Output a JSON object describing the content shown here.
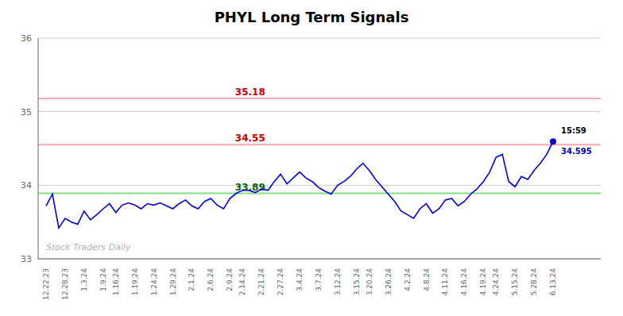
{
  "chart_data": {
    "type": "line",
    "title": "PHYL Long Term Signals",
    "categories": [
      "12.22.23",
      null,
      null,
      "12.28.23",
      null,
      null,
      "1.3.24",
      null,
      null,
      "1.9.24",
      null,
      "1.16.24",
      null,
      null,
      "1.19.24",
      null,
      null,
      "1.24.24",
      null,
      null,
      "1.29.24",
      null,
      null,
      "2.1.24",
      null,
      null,
      "2.6.24",
      null,
      null,
      "2.9.24",
      null,
      "2.14.24",
      null,
      null,
      "2.21.24",
      null,
      null,
      "2.27.24",
      null,
      null,
      "3.4.24",
      null,
      null,
      "3.7.24",
      null,
      null,
      "3.12.24",
      null,
      null,
      "3.15.24",
      null,
      "3.20.24",
      null,
      null,
      "3.26.24",
      null,
      null,
      "4.2.24",
      null,
      null,
      "4.8.24",
      null,
      null,
      "4.11.24",
      null,
      null,
      "4.16.24",
      null,
      null,
      "4.19.24",
      null,
      "4.24.24",
      null,
      null,
      "5.15.24",
      null,
      null,
      "5.28.24",
      null,
      null,
      "6.13.24"
    ],
    "values": [
      33.72,
      33.88,
      33.42,
      33.55,
      33.5,
      33.47,
      33.65,
      33.53,
      33.6,
      33.68,
      33.75,
      33.63,
      33.73,
      33.76,
      33.73,
      33.68,
      33.75,
      33.73,
      33.76,
      33.72,
      33.68,
      33.75,
      33.8,
      33.72,
      33.68,
      33.78,
      33.82,
      33.73,
      33.68,
      33.82,
      33.89,
      33.93,
      33.93,
      33.9,
      33.95,
      33.93,
      34.05,
      34.15,
      34.02,
      34.1,
      34.18,
      34.1,
      34.05,
      33.97,
      33.92,
      33.88,
      34.0,
      34.05,
      34.12,
      34.22,
      34.3,
      34.2,
      34.08,
      33.98,
      33.88,
      33.78,
      33.65,
      33.6,
      33.55,
      33.68,
      33.75,
      33.62,
      33.68,
      33.8,
      33.82,
      33.72,
      33.78,
      33.88,
      33.95,
      34.05,
      34.18,
      34.38,
      34.42,
      34.05,
      33.98,
      34.12,
      34.08,
      34.2,
      34.3,
      34.42,
      34.595
    ],
    "color": "#0000dd",
    "ylim": [
      33,
      36
    ],
    "yticks": [
      33,
      34,
      35,
      36
    ],
    "grid": true,
    "annotations": [
      {
        "type": "hline",
        "y": 35.18,
        "color": "#ffaaaa",
        "label": {
          "text": "35.18",
          "color": "#cc0000"
        }
      },
      {
        "type": "hline",
        "y": 34.55,
        "color": "#ffaaaa",
        "label": {
          "text": "34.55",
          "color": "#cc0000"
        }
      },
      {
        "type": "hline",
        "y": 33.89,
        "color": "#88dd88",
        "label": {
          "text": "33.89",
          "color": "#006600"
        }
      },
      {
        "type": "last_point",
        "y": 34.595,
        "color": "#0000cc",
        "texts": [
          "15:59",
          "34.595"
        ]
      },
      {
        "type": "watermark",
        "text": "Stock Traders Daily"
      }
    ]
  }
}
